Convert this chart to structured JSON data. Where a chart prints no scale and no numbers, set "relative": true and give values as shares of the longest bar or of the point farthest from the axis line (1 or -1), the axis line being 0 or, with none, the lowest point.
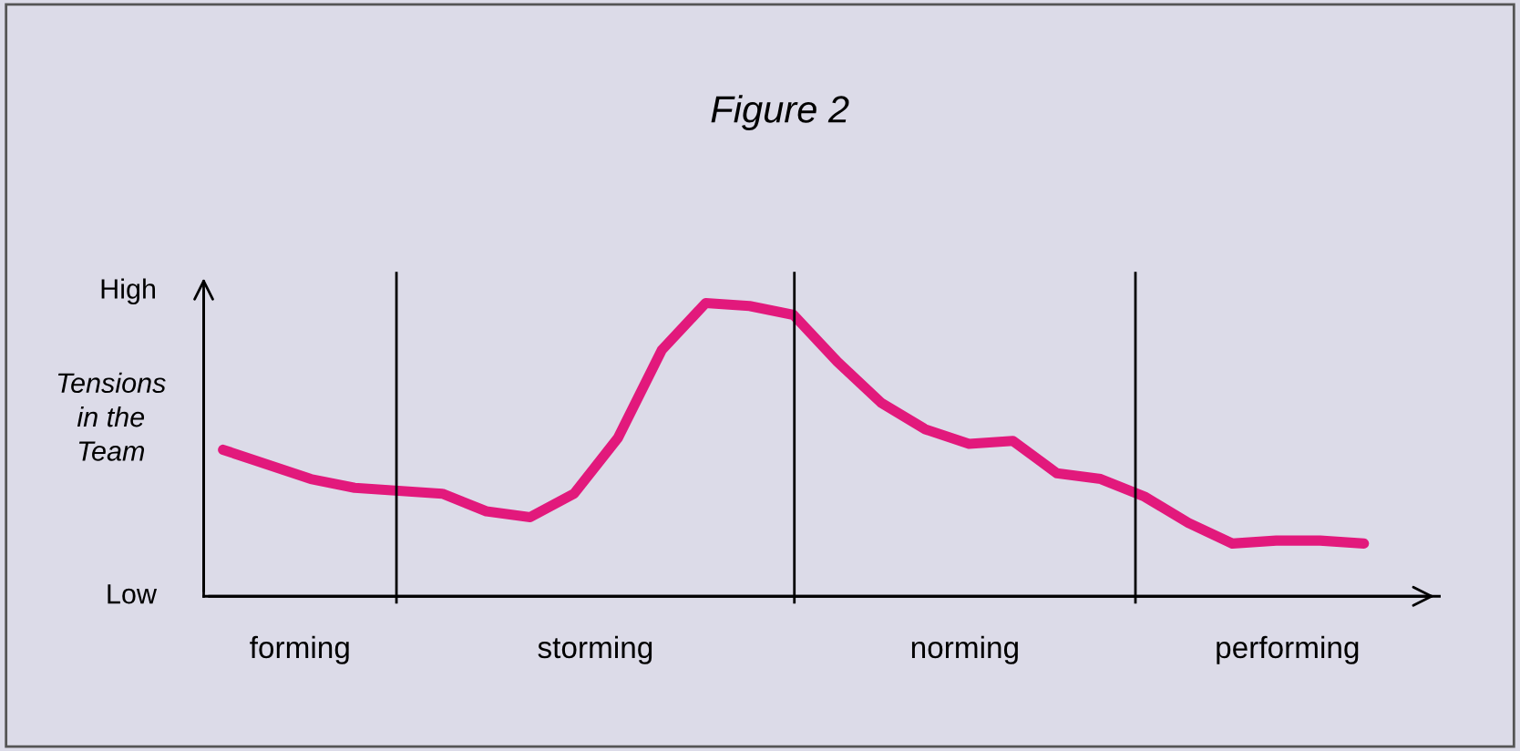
{
  "chart_data": {
    "type": "line",
    "title": "Figure 2",
    "ylabel": "Tensions\nin the\nTeam",
    "relative": true,
    "categories": [
      null,
      null,
      null,
      null,
      null,
      null,
      null,
      null,
      null,
      null,
      null,
      null,
      null,
      null,
      null,
      null,
      null,
      null,
      null,
      null,
      null,
      null,
      null,
      null,
      null,
      null,
      null
    ],
    "series": [
      {
        "color": "#e2197c",
        "values": [
          0.5,
          0.45,
          0.4,
          0.37,
          0.36,
          0.35,
          0.29,
          0.27,
          0.35,
          0.54,
          0.84,
          1.0,
          0.99,
          0.96,
          0.8,
          0.66,
          0.57,
          0.52,
          0.53,
          0.42,
          0.4,
          0.34,
          0.25,
          0.18,
          0.19,
          0.19,
          0.18
        ]
      }
    ],
    "annotations": [
      "High",
      "Low",
      "forming",
      "storming",
      "norming",
      "performing"
    ]
  }
}
